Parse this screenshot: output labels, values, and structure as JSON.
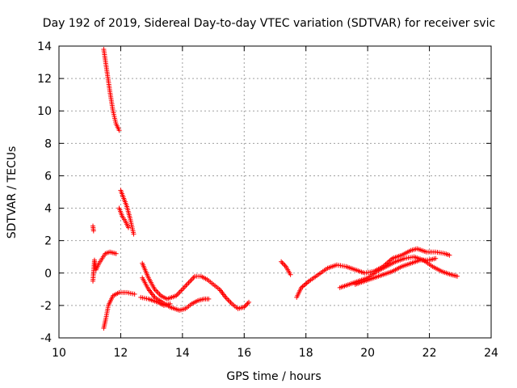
{
  "chart_data": {
    "type": "scatter",
    "title": "Day 192 of 2019, Sidereal Day-to-day VTEC variation (SDTVAR) for receiver svic",
    "xlabel": "GPS time / hours",
    "ylabel": "SDTVAR / TECUs",
    "xlim": [
      10,
      24
    ],
    "ylim": [
      -4,
      14
    ],
    "xticks": [
      10,
      12,
      14,
      16,
      18,
      20,
      22,
      24
    ],
    "yticks": [
      -4,
      -2,
      0,
      2,
      4,
      6,
      8,
      10,
      12,
      14
    ],
    "grid": true,
    "marker": "+",
    "color": "#ff0000",
    "segments": [
      {
        "name": "isolated-high",
        "points": [
          [
            11.1,
            2.9
          ],
          [
            11.12,
            2.6
          ]
        ]
      },
      {
        "name": "steep-descent-a",
        "points": [
          [
            11.45,
            13.8
          ],
          [
            11.55,
            12.5
          ],
          [
            11.65,
            11.2
          ],
          [
            11.75,
            10.0
          ],
          [
            11.85,
            9.2
          ],
          [
            11.95,
            8.8
          ]
        ]
      },
      {
        "name": "steep-descent-b",
        "points": [
          [
            12.0,
            5.1
          ],
          [
            12.1,
            4.6
          ],
          [
            12.2,
            4.1
          ],
          [
            12.3,
            3.4
          ],
          [
            12.42,
            2.4
          ]
        ]
      },
      {
        "name": "steep-descent-c",
        "points": [
          [
            11.95,
            4.0
          ],
          [
            12.05,
            3.5
          ],
          [
            12.15,
            3.2
          ],
          [
            12.25,
            2.8
          ]
        ]
      },
      {
        "name": "low-start-cluster",
        "points": [
          [
            11.1,
            -0.5
          ],
          [
            11.15,
            0.8
          ],
          [
            11.2,
            0.2
          ],
          [
            11.3,
            0.6
          ],
          [
            11.4,
            0.9
          ],
          [
            11.5,
            1.2
          ],
          [
            11.65,
            1.3
          ],
          [
            11.85,
            1.2
          ]
        ]
      },
      {
        "name": "rising-low",
        "points": [
          [
            11.45,
            -3.4
          ],
          [
            11.52,
            -2.8
          ],
          [
            11.6,
            -2.0
          ],
          [
            11.75,
            -1.4
          ],
          [
            11.95,
            -1.2
          ],
          [
            12.2,
            -1.2
          ],
          [
            12.45,
            -1.3
          ]
        ]
      },
      {
        "name": "track-1",
        "points": [
          [
            12.7,
            0.6
          ],
          [
            12.9,
            -0.3
          ],
          [
            13.1,
            -1.0
          ],
          [
            13.3,
            -1.4
          ],
          [
            13.5,
            -1.6
          ],
          [
            13.8,
            -1.4
          ],
          [
            14.0,
            -1.0
          ],
          [
            14.2,
            -0.6
          ],
          [
            14.4,
            -0.2
          ],
          [
            14.6,
            -0.2
          ],
          [
            14.8,
            -0.4
          ],
          [
            15.0,
            -0.7
          ],
          [
            15.2,
            -1.0
          ],
          [
            15.4,
            -1.5
          ],
          [
            15.6,
            -1.9
          ],
          [
            15.8,
            -2.2
          ],
          [
            16.0,
            -2.1
          ],
          [
            16.15,
            -1.8
          ]
        ]
      },
      {
        "name": "track-2",
        "points": [
          [
            12.7,
            -0.3
          ],
          [
            12.9,
            -1.0
          ],
          [
            13.1,
            -1.5
          ],
          [
            13.35,
            -1.8
          ],
          [
            13.6,
            -2.1
          ],
          [
            13.9,
            -2.3
          ],
          [
            14.1,
            -2.2
          ],
          [
            14.3,
            -1.9
          ],
          [
            14.5,
            -1.7
          ],
          [
            14.7,
            -1.6
          ],
          [
            14.85,
            -1.6
          ]
        ]
      },
      {
        "name": "track-3",
        "points": [
          [
            12.65,
            -1.5
          ],
          [
            12.9,
            -1.6
          ],
          [
            13.2,
            -1.8
          ],
          [
            13.4,
            -2.0
          ],
          [
            13.6,
            -1.9
          ]
        ]
      },
      {
        "name": "midday-group",
        "points": [
          [
            17.2,
            0.7
          ],
          [
            17.35,
            0.4
          ],
          [
            17.5,
            -0.1
          ]
        ]
      },
      {
        "name": "evening-a",
        "points": [
          [
            17.7,
            -1.5
          ],
          [
            17.85,
            -0.9
          ],
          [
            18.1,
            -0.5
          ],
          [
            18.4,
            -0.1
          ],
          [
            18.7,
            0.3
          ],
          [
            19.0,
            0.5
          ],
          [
            19.3,
            0.4
          ],
          [
            19.6,
            0.2
          ],
          [
            19.9,
            0.0
          ],
          [
            20.2,
            0.1
          ],
          [
            20.5,
            0.4
          ],
          [
            20.8,
            0.9
          ],
          [
            21.1,
            1.1
          ],
          [
            21.4,
            1.4
          ],
          [
            21.6,
            1.5
          ],
          [
            21.9,
            1.3
          ],
          [
            22.2,
            1.3
          ],
          [
            22.5,
            1.2
          ],
          [
            22.65,
            1.1
          ]
        ]
      },
      {
        "name": "evening-b",
        "points": [
          [
            19.1,
            -0.9
          ],
          [
            19.4,
            -0.7
          ],
          [
            19.7,
            -0.5
          ],
          [
            20.0,
            -0.3
          ],
          [
            20.3,
            0.1
          ],
          [
            20.6,
            0.4
          ],
          [
            20.9,
            0.7
          ],
          [
            21.2,
            0.9
          ],
          [
            21.5,
            1.0
          ],
          [
            21.8,
            0.8
          ],
          [
            22.1,
            0.4
          ],
          [
            22.4,
            0.1
          ],
          [
            22.7,
            -0.1
          ],
          [
            22.9,
            -0.2
          ]
        ]
      },
      {
        "name": "evening-c",
        "points": [
          [
            19.6,
            -0.7
          ],
          [
            19.9,
            -0.5
          ],
          [
            20.2,
            -0.3
          ],
          [
            20.5,
            -0.1
          ],
          [
            20.8,
            0.1
          ],
          [
            21.1,
            0.4
          ],
          [
            21.4,
            0.6
          ],
          [
            21.7,
            0.8
          ],
          [
            22.0,
            0.8
          ],
          [
            22.2,
            0.9
          ]
        ]
      }
    ]
  }
}
